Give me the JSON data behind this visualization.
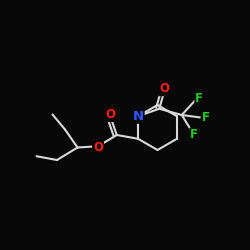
{
  "background": "#080808",
  "bond_color": "#d8d8d8",
  "bond_width": 1.5,
  "atom_colors": {
    "O": "#ff1a1a",
    "N": "#3355ff",
    "F": "#22cc22",
    "C": "#d8d8d8"
  },
  "font_size_atom": 8.5
}
